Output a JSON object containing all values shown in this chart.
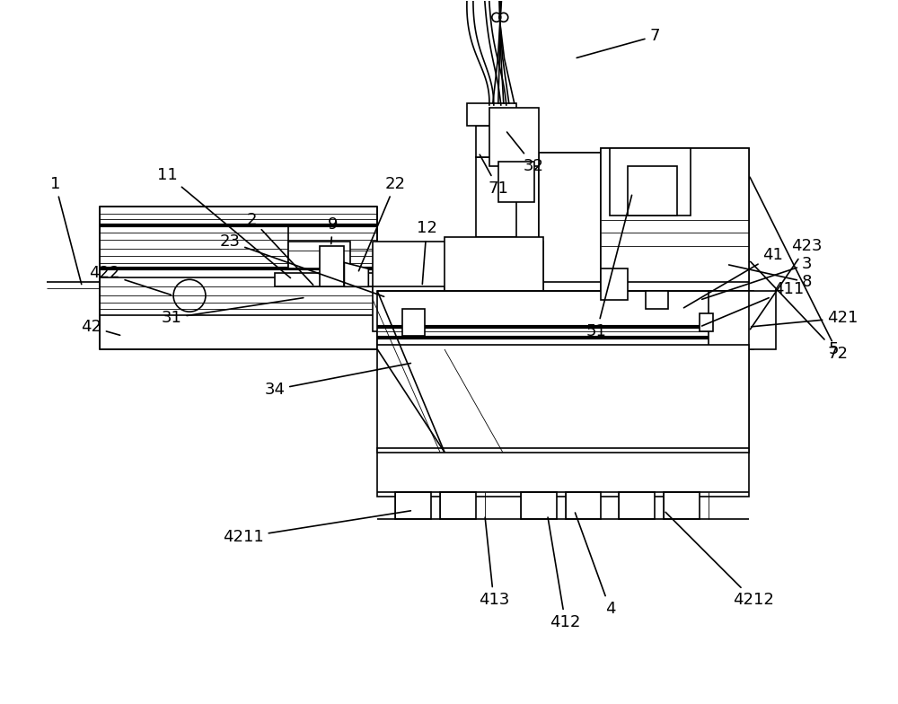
{
  "bg_color": "#ffffff",
  "line_color": "#000000",
  "lw": 1.2,
  "tlw": 0.6,
  "thw": 3.0,
  "fig_width": 10.0,
  "fig_height": 7.84,
  "label_fontsize": 13
}
